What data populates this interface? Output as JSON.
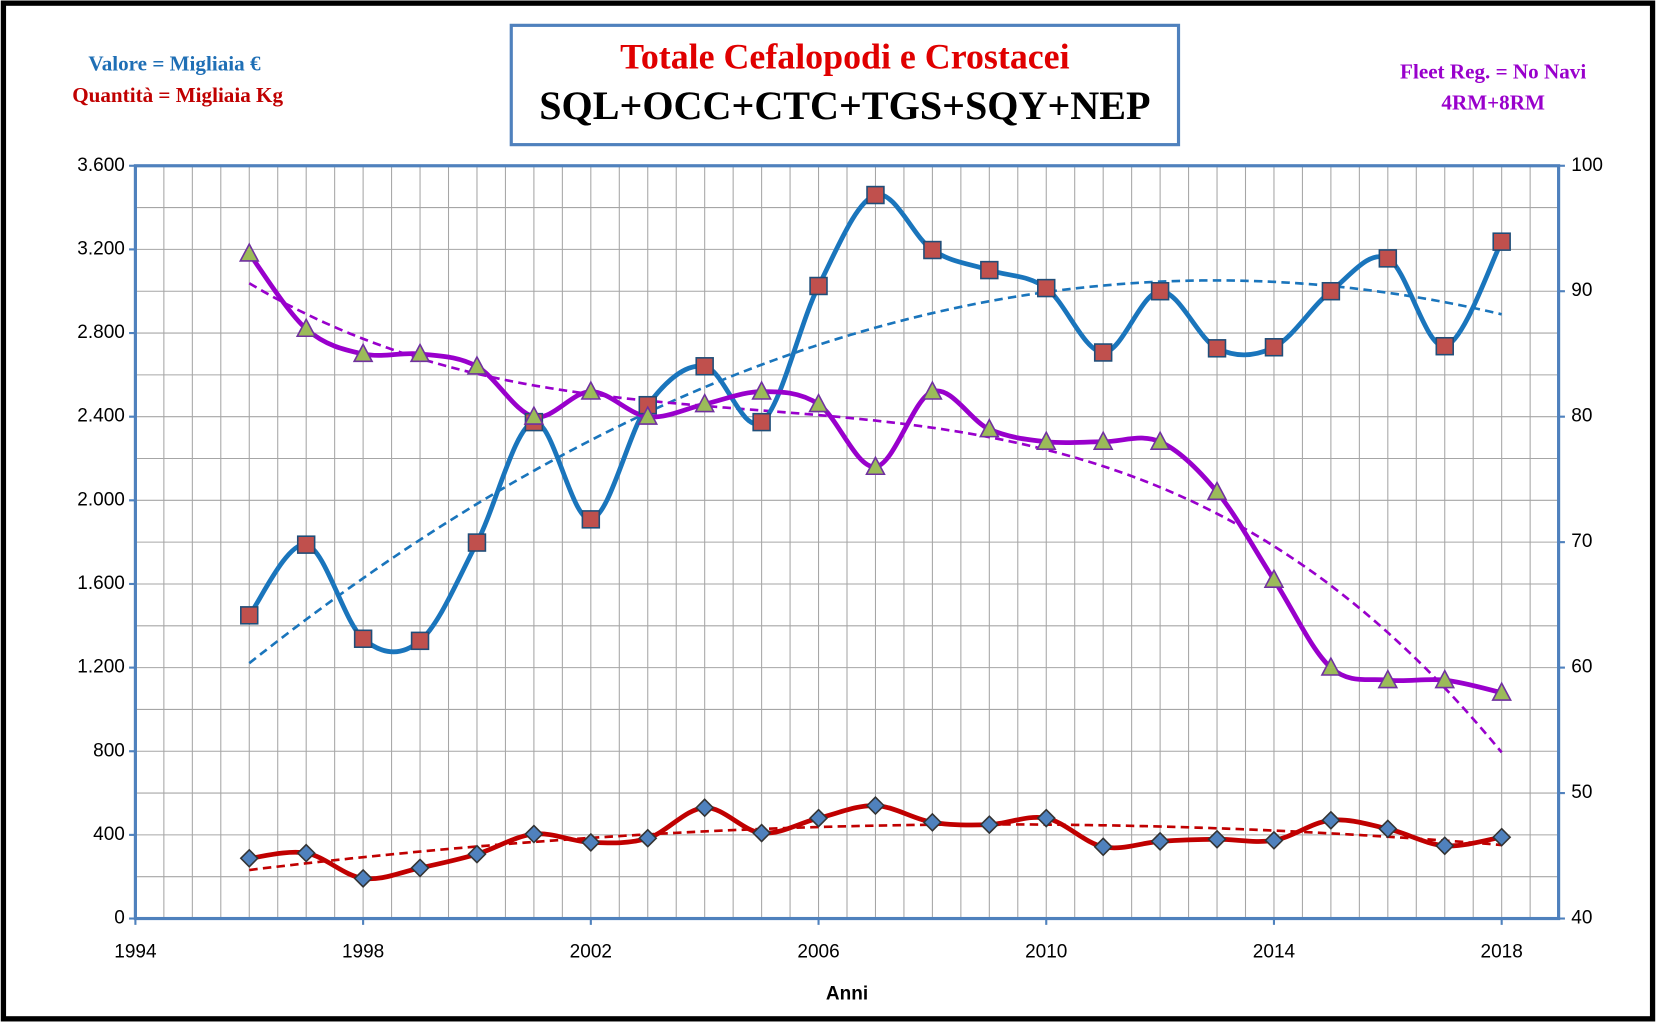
{
  "chart_data": {
    "type": "line",
    "title": "Totale  Cefalopodi e Crostacei",
    "subtitle": "SQL+OCC+CTC+TGS+SQY+NEP",
    "annotations": [
      "Valore = Migliaia €",
      "Quantità = Migliaia Kg",
      "Fleet Reg. = No Navi",
      "4RM+8RM"
    ],
    "x_label": "Anni",
    "x": [
      1996,
      1997,
      1998,
      1999,
      2000,
      2001,
      2002,
      2003,
      2004,
      2005,
      2006,
      2007,
      2008,
      2009,
      2010,
      2011,
      2012,
      2013,
      2014,
      2015,
      2016,
      2017,
      2018
    ],
    "xlim": [
      1994,
      2019
    ],
    "xticks": [
      1994,
      1998,
      2002,
      2006,
      2010,
      2014,
      2018
    ],
    "ylim": [
      0,
      3600
    ],
    "yticks": [
      0,
      {
        "value": 400,
        "label": "400"
      },
      {
        "value": 800,
        "label": "800"
      },
      {
        "value": 1200,
        "label": "1.200"
      },
      {
        "value": 1600,
        "label": "1.600"
      },
      {
        "value": 2000,
        "label": "2.000"
      },
      {
        "value": 2400,
        "label": "2.400"
      },
      {
        "value": 2800,
        "label": "2.800"
      },
      {
        "value": 3200,
        "label": "3.200"
      },
      {
        "value": 3600,
        "label": "3.600"
      }
    ],
    "y2lim": [
      40,
      100
    ],
    "y2ticks": [
      40,
      50,
      60,
      70,
      80,
      90,
      100
    ],
    "grid": true,
    "x_minor_step": 0.5,
    "y_minor_step": 200,
    "smooth": true,
    "series": [
      {
        "color": "#1a75bc",
        "marker": "square",
        "marker_color": "#c0504d",
        "trendline": 2,
        "values": [
          1450,
          1788,
          1338,
          1328,
          1798,
          2374,
          1909,
          2455,
          2641,
          2374,
          3025,
          3460,
          3197,
          3101,
          3015,
          2707,
          3000,
          2727,
          2732,
          3000,
          3157,
          2737,
          3237
        ]
      },
      {
        "color": "#c00000",
        "marker": "diamond",
        "marker_color": "#4f81bd",
        "trendline": 2,
        "values": [
          288,
          313,
          192,
          242,
          308,
          404,
          364,
          384,
          530,
          409,
          480,
          540,
          460,
          449,
          480,
          343,
          369,
          379,
          374,
          470,
          429,
          348,
          389
        ]
      },
      {
        "color": "#9900cc",
        "marker": "triangle",
        "marker_color": "#9bbb59",
        "trendline": 3,
        "axis": "y2",
        "values": [
          93,
          87,
          85,
          85,
          84,
          80,
          82,
          80,
          81,
          82,
          81,
          76,
          82,
          79,
          78,
          78,
          78,
          74,
          67,
          60,
          59,
          59,
          58
        ]
      }
    ]
  }
}
